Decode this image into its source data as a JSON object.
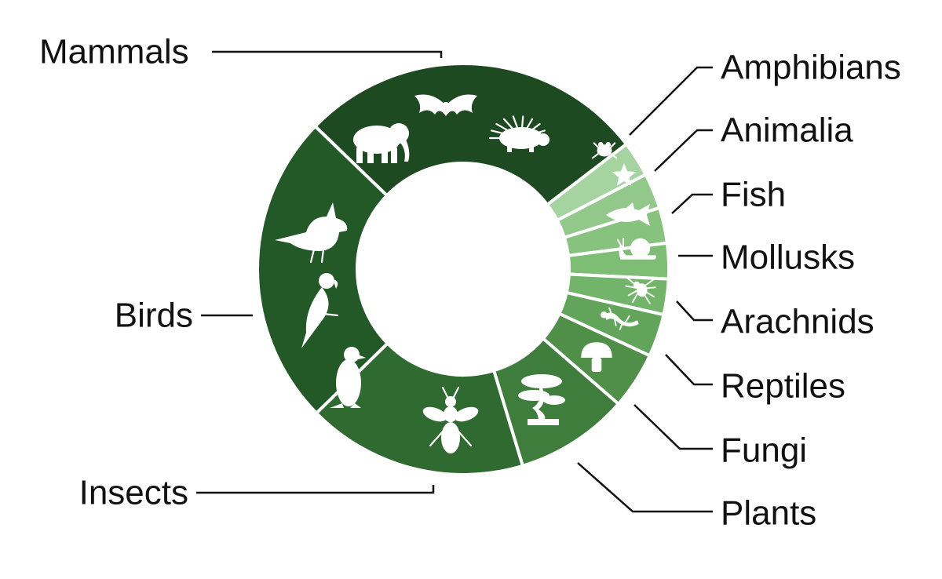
{
  "chart_data": {
    "type": "pie",
    "donut": true,
    "categories": [
      "Mammals",
      "Amphibians",
      "Animalia",
      "Fish",
      "Mollusks",
      "Arachnids",
      "Reptiles",
      "Fungi",
      "Plants",
      "Insects",
      "Birds"
    ],
    "values": [
      24.5,
      2.5,
      2.5,
      2.5,
      2.5,
      2.5,
      3.0,
      4.0,
      8.0,
      15.5,
      22.0
    ],
    "colors": [
      "#1e4a22",
      "#a6d4a0",
      "#92c98b",
      "#87c37f",
      "#7dbd74",
      "#72b56a",
      "#62a55a",
      "#4f8f48",
      "#3f7d3c",
      "#2f6a30",
      "#235927"
    ],
    "icons": [
      "elephant-bat-porcupine-icons",
      "frog-icon",
      "starfish-icon",
      "fish-icon",
      "snail-icon",
      "spider-icon",
      "lizard-icon",
      "mushroom-icon",
      "bonsai-tree-icon",
      "bee-icon",
      "cardinal-parrot-penguin-icons"
    ],
    "legend": "none"
  }
}
